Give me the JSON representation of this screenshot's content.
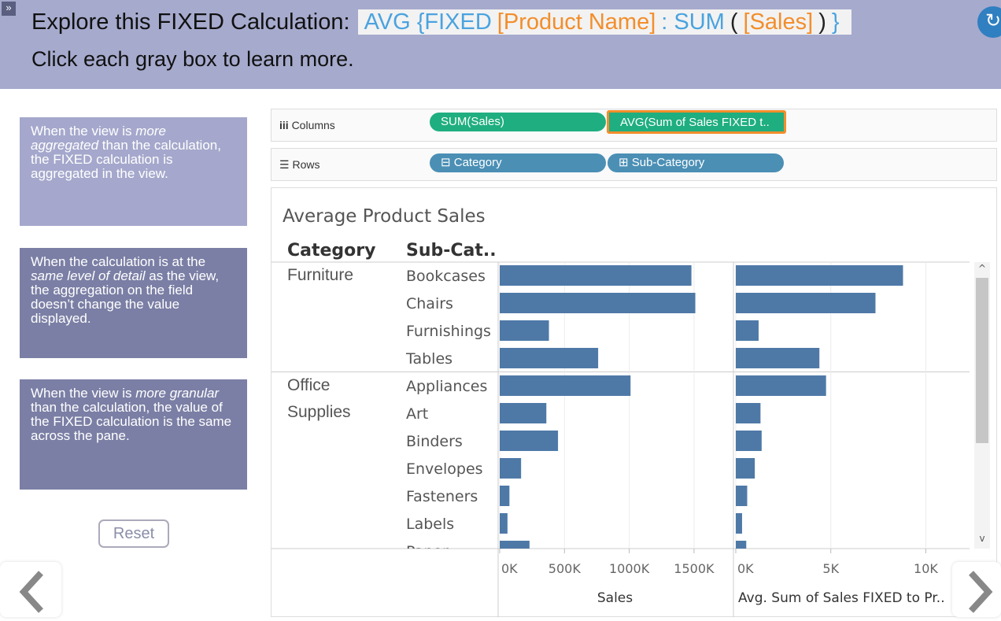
{
  "header": {
    "title": "Explore this FIXED Calculation:",
    "formula": [
      {
        "text": "AVG {FIXED",
        "color": "#4aa3df"
      },
      {
        "text": "[Product Name]",
        "color": "#f28e2b"
      },
      {
        "text": ": SUM",
        "color": "#4aa3df"
      },
      {
        "text": "(",
        "color": "#222222"
      },
      {
        "text": "[Sales]",
        "color": "#f28e2b"
      },
      {
        "text": ")",
        "color": "#222222"
      },
      {
        "text": "}",
        "color": "#4aa3df"
      }
    ],
    "subtitle": "Click each gray box to learn more."
  },
  "explanations": [
    {
      "color": "#a5a8cc",
      "parts": [
        {
          "text": "When the view is "
        },
        {
          "text": "more aggregated",
          "italic": true
        },
        {
          "text": " than the calculation, the FIXED calculation is aggregated in the view."
        }
      ]
    },
    {
      "color": "#7b7fa5",
      "parts": [
        {
          "text": "When the calculation is at the "
        },
        {
          "text": "same level of detail",
          "italic": true
        },
        {
          "text": " as the view, the aggregation on the field doesn’t change the value displayed."
        }
      ]
    },
    {
      "color": "#7b7fa5",
      "parts": [
        {
          "text": "When the view is "
        },
        {
          "text": "more granular",
          "italic": true
        },
        {
          "text": " than the calculation, the value of the FIXED calculation is the same across the pane."
        }
      ]
    }
  ],
  "reset": "Reset",
  "shelves": {
    "columns": {
      "label": "Columns",
      "pills": [
        "SUM(Sales)",
        "AVG(Sum of Sales FIXED t.."
      ]
    },
    "rows": {
      "label": "Rows",
      "pills": [
        "⊟ Category",
        "⊞ Sub-Category"
      ]
    }
  },
  "chart_data": {
    "type": "bar",
    "orientation": "horizontal",
    "title": "Average Product Sales",
    "row_headers": [
      "Category",
      "Sub-Cat.."
    ],
    "groups": [
      {
        "name": "Furniture",
        "categories": [
          "Bookcases",
          "Chairs",
          "Furnishings",
          "Tables"
        ]
      },
      {
        "name": "Office Supplies",
        "categories": [
          "Appliances",
          "Art",
          "Binders",
          "Envelopes",
          "Fasteners",
          "Labels",
          "Paper"
        ]
      }
    ],
    "series": [
      {
        "name": "Sales",
        "color": "#4e79a7",
        "values": [
          1480000,
          1510000,
          380000,
          760000,
          1010000,
          360000,
          450000,
          165000,
          75000,
          60000,
          230000
        ],
        "xlim": [
          0,
          1780000
        ],
        "xticks": [
          {
            "value": 0,
            "label": "0K"
          },
          {
            "value": 500000,
            "label": "500K"
          },
          {
            "value": 1000000,
            "label": "1000K"
          },
          {
            "value": 1500000,
            "label": "1500K"
          }
        ]
      },
      {
        "name": "Avg. Sum of Sales FIXED to Pr..",
        "color": "#4e79a7",
        "values": [
          8800,
          7350,
          1200,
          4400,
          4750,
          1300,
          1360,
          1000,
          600,
          330,
          550
        ],
        "xlim": [
          0,
          12300
        ],
        "xticks": [
          {
            "value": 0,
            "label": "0K"
          },
          {
            "value": 5000,
            "label": "5K"
          },
          {
            "value": 10000,
            "label": "10K"
          }
        ]
      }
    ],
    "grid": true
  }
}
